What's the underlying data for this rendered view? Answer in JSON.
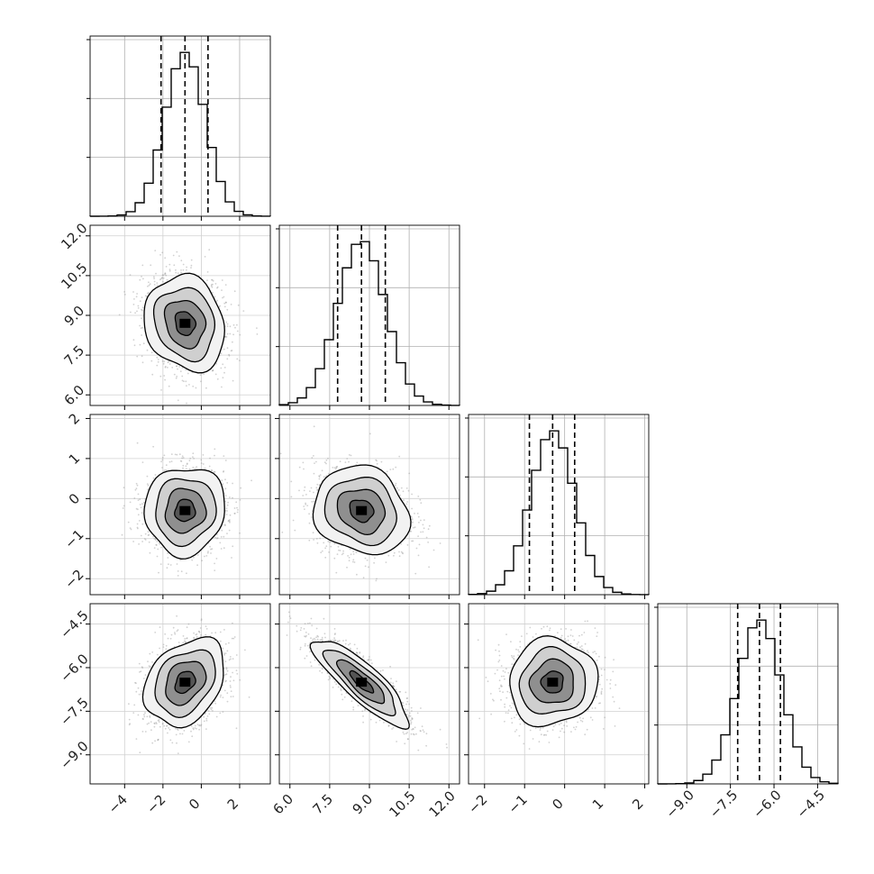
{
  "chart_data": {
    "type": "corner",
    "grid": true,
    "parameters": [
      {
        "mean": -0.85,
        "sigma": 1.05,
        "quantiles": [
          -2.1,
          -0.85,
          0.35
        ],
        "range": [
          -5.8,
          3.6
        ],
        "ticks": [
          -4,
          -2,
          0,
          2
        ],
        "tick_labels": [
          "−4",
          "−2",
          "0",
          "2"
        ]
      },
      {
        "mean": 8.7,
        "sigma": 0.9,
        "quantiles": [
          7.8,
          8.7,
          9.6
        ],
        "range": [
          5.6,
          12.4
        ],
        "ticks": [
          6.0,
          7.5,
          9.0,
          10.5,
          12.0
        ],
        "tick_labels": [
          "6.0",
          "7.5",
          "9.0",
          "10.5",
          "12.0"
        ]
      },
      {
        "mean": -0.3,
        "sigma": 0.55,
        "quantiles": [
          -0.88,
          -0.3,
          0.25
        ],
        "range": [
          -2.4,
          2.1
        ],
        "ticks": [
          -2,
          -1,
          0,
          1,
          2
        ],
        "tick_labels": [
          "−2",
          "−1",
          "0",
          "1",
          "2"
        ]
      },
      {
        "mean": -6.5,
        "sigma": 0.75,
        "quantiles": [
          -7.25,
          -6.5,
          -5.78
        ],
        "range": [
          -10.0,
          -3.8
        ],
        "ticks": [
          -9.0,
          -7.5,
          -6.0,
          -4.5
        ],
        "tick_labels": [
          "−9.0",
          "−7.5",
          "−6.0",
          "−4.5"
        ]
      }
    ],
    "correlations": {
      "1_0": -0.15,
      "2_0": 0.05,
      "2_1": -0.15,
      "3_0": 0.3,
      "3_1": -0.85,
      "3_2": 0.05
    }
  }
}
